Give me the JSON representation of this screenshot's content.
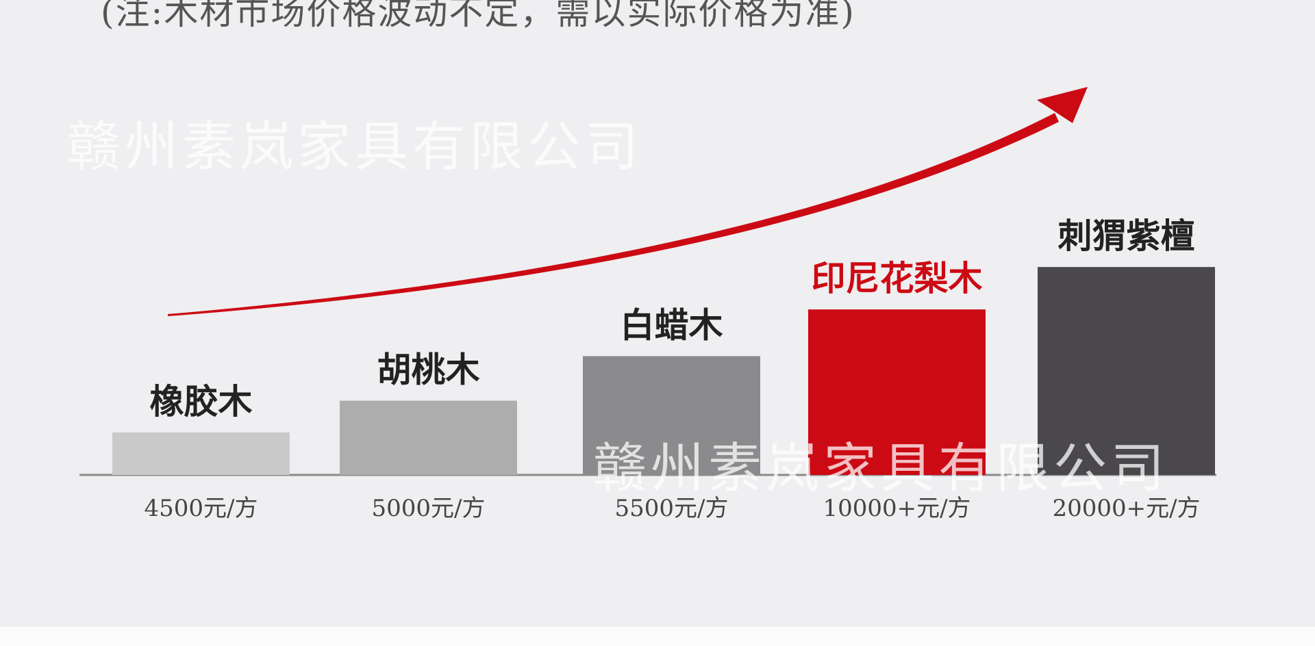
{
  "note": "(注:木材市场价格波动不定，需以实际价格为准)",
  "watermark": "赣州素岚家具有限公司",
  "chart_data": {
    "type": "bar",
    "title": "",
    "categories": [
      "橡胶木",
      "胡桃木",
      "白蜡木",
      "印尼花梨木",
      "刺猬紫檀"
    ],
    "value_labels": [
      "4500元/方",
      "5000元/方",
      "5500元/方",
      "10000+元/方",
      "20000+元/方"
    ],
    "relative_heights": [
      1.0,
      1.75,
      2.8,
      3.9,
      4.9
    ],
    "colors": [
      "#c9c9c9",
      "#aeadae",
      "#8b8a8d",
      "#cc0a14",
      "#4a484c"
    ],
    "label_colors": [
      "#222222",
      "#222222",
      "#222222",
      "#cc0a14",
      "#222222"
    ],
    "trend_arrow": {
      "color": "#cc0a14",
      "direction": "up"
    },
    "grid": false,
    "legend": "none"
  }
}
